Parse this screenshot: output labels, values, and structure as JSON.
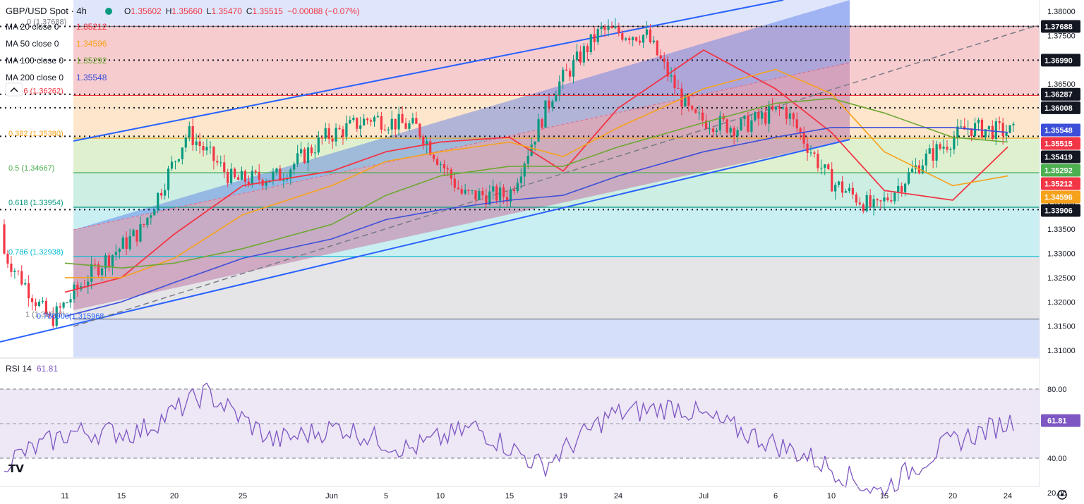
{
  "header": {
    "symbol": "GBP/USD Spot · 4h",
    "ohlc": [
      {
        "k": "O",
        "v": "1.35602"
      },
      {
        "k": "H",
        "v": "1.35660"
      },
      {
        "k": "L",
        "v": "1.35470"
      },
      {
        "k": "C",
        "v": "1.35515"
      }
    ],
    "change": "−0.00088 (−0.07%)"
  },
  "legend": [
    {
      "label": "MA 20 close 0",
      "value": "1.35212",
      "color": "#f23645"
    },
    {
      "label": "MA 50 close 0",
      "value": "1.34596",
      "color": "#f7a21b"
    },
    {
      "label": "MA 100 close 0",
      "value": "1.35292",
      "color": "#6ea734"
    },
    {
      "label": "MA 200 close 0",
      "value": "1.35548",
      "color": "#3d4fd8"
    }
  ],
  "fib_labels": [
    {
      "text": "0 (1.37688)",
      "y": 1.37688
    },
    {
      "text": "0.236 (1.36262)",
      "y": 1.36262
    },
    {
      "text": "0.382 (1.35380)",
      "y": 1.3538
    },
    {
      "text": "0.5 (1.34667)",
      "y": 1.34667
    },
    {
      "text": "0.618 (1.33954)",
      "y": 1.33954
    },
    {
      "text": "0.786 (1.32938)",
      "y": 1.32938
    },
    {
      "text": "1 (1.31646)",
      "y": 1.31646
    }
  ],
  "channel_label": "0.780900(1.315968",
  "price_axis": {
    "ticks": [
      "1.38000",
      "1.37500",
      "1.37000",
      "1.36500",
      "1.36000",
      "1.35500",
      "1.35000",
      "1.34500",
      "1.34000",
      "1.33500",
      "1.33000",
      "1.32500",
      "1.32000",
      "1.31500",
      "1.31000"
    ],
    "tick_values": [
      1.38,
      1.375,
      1.37,
      1.365,
      1.36,
      1.355,
      1.35,
      1.345,
      1.34,
      1.335,
      1.33,
      1.325,
      1.32,
      1.315,
      1.31
    ]
  },
  "price_badges": [
    {
      "text": "1.37688",
      "value": 1.37688,
      "bg": "#131722",
      "fg": "#ffffff"
    },
    {
      "text": "1.36990",
      "value": 1.3699,
      "bg": "#131722",
      "fg": "#ffffff"
    },
    {
      "text": "1.36287",
      "value": 1.36287,
      "bg": "#131722",
      "fg": "#ffffff"
    },
    {
      "text": "1.36008",
      "value": 1.36008,
      "bg": "#131722",
      "fg": "#ffffff"
    },
    {
      "text": "1.35548",
      "value": 1.35548,
      "bg": "#3d4fd8",
      "fg": "#ffffff"
    },
    {
      "text": "1.35515",
      "value": 1.35515,
      "bg": "#f23645",
      "fg": "#ffffff"
    },
    {
      "text": "1.35419",
      "value": 1.35419,
      "bg": "#131722",
      "fg": "#ffffff"
    },
    {
      "text": "1.35292",
      "value": 1.35292,
      "bg": "#4caf50",
      "fg": "#ffffff"
    },
    {
      "text": "1.35212",
      "value": 1.35212,
      "bg": "#f23645",
      "fg": "#ffffff"
    },
    {
      "text": "1.34596",
      "value": 1.34596,
      "bg": "#f7a21b",
      "fg": "#ffffff"
    },
    {
      "text": "1.33906",
      "value": 1.33906,
      "bg": "#131722",
      "fg": "#ffffff"
    }
  ],
  "rsi": {
    "label": "RSI 14",
    "value": "61.81",
    "ticks": [
      "80.00",
      "40.00",
      "20.00"
    ],
    "tick_values": [
      80,
      40,
      20
    ],
    "color": "#7e57c2"
  },
  "time_axis": [
    "11",
    "15",
    "20",
    "25",
    "Jun",
    "5",
    "10",
    "15",
    "19",
    "24",
    "Jul",
    "6",
    "10",
    "15",
    "20",
    "24"
  ],
  "colors": {
    "ma20": "#f23645",
    "ma50": "#f7a21b",
    "ma100": "#6ea734",
    "ma200": "#3d4fd8",
    "up": "#089981",
    "down": "#f23645",
    "channel": "#2962ff",
    "rsi": "#7e57c2"
  },
  "chart_data": {
    "type": "line",
    "title": "GBP/USD Spot · 4h",
    "xlabel": "",
    "ylabel": "",
    "ylim": [
      1.31,
      1.38
    ],
    "x": [
      "11",
      "15",
      "20",
      "25",
      "Jun",
      "5",
      "10",
      "15",
      "19",
      "24",
      "Jul",
      "6",
      "10",
      "15",
      "20",
      "24"
    ],
    "series": [
      {
        "name": "MA 20 close 0",
        "values": [
          1.322,
          1.325,
          1.334,
          1.344,
          1.347,
          1.351,
          1.353,
          1.354,
          1.347,
          1.36,
          1.372,
          1.364,
          1.355,
          1.343,
          1.341,
          1.352
        ]
      },
      {
        "name": "MA 50 close 0",
        "values": [
          1.325,
          1.325,
          1.329,
          1.338,
          1.344,
          1.349,
          1.351,
          1.353,
          1.35,
          1.356,
          1.364,
          1.368,
          1.363,
          1.351,
          1.344,
          1.346
        ]
      },
      {
        "name": "MA 100 close 0",
        "values": [
          1.328,
          1.327,
          1.328,
          1.331,
          1.336,
          1.342,
          1.346,
          1.348,
          1.348,
          1.352,
          1.357,
          1.361,
          1.362,
          1.359,
          1.354,
          1.353
        ]
      },
      {
        "name": "MA 200 close 0",
        "values": [
          1.317,
          1.32,
          1.324,
          1.329,
          1.333,
          1.337,
          1.339,
          1.341,
          1.342,
          1.346,
          1.351,
          1.354,
          1.356,
          1.356,
          1.356,
          1.355
        ]
      },
      {
        "name": "RSI 14",
        "values": [
          38,
          55,
          55,
          78,
          50,
          58,
          45,
          58,
          35,
          65,
          70,
          55,
          40,
          20,
          48,
          61.81
        ]
      }
    ],
    "price_candles_approx": [
      1.33,
      1.316,
      1.327,
      1.335,
      1.355,
      1.345,
      1.346,
      1.354,
      1.358,
      1.356,
      1.342,
      1.342,
      1.364,
      1.376,
      1.375,
      1.358,
      1.356,
      1.36,
      1.345,
      1.339,
      1.349,
      1.356,
      1.355
    ]
  }
}
